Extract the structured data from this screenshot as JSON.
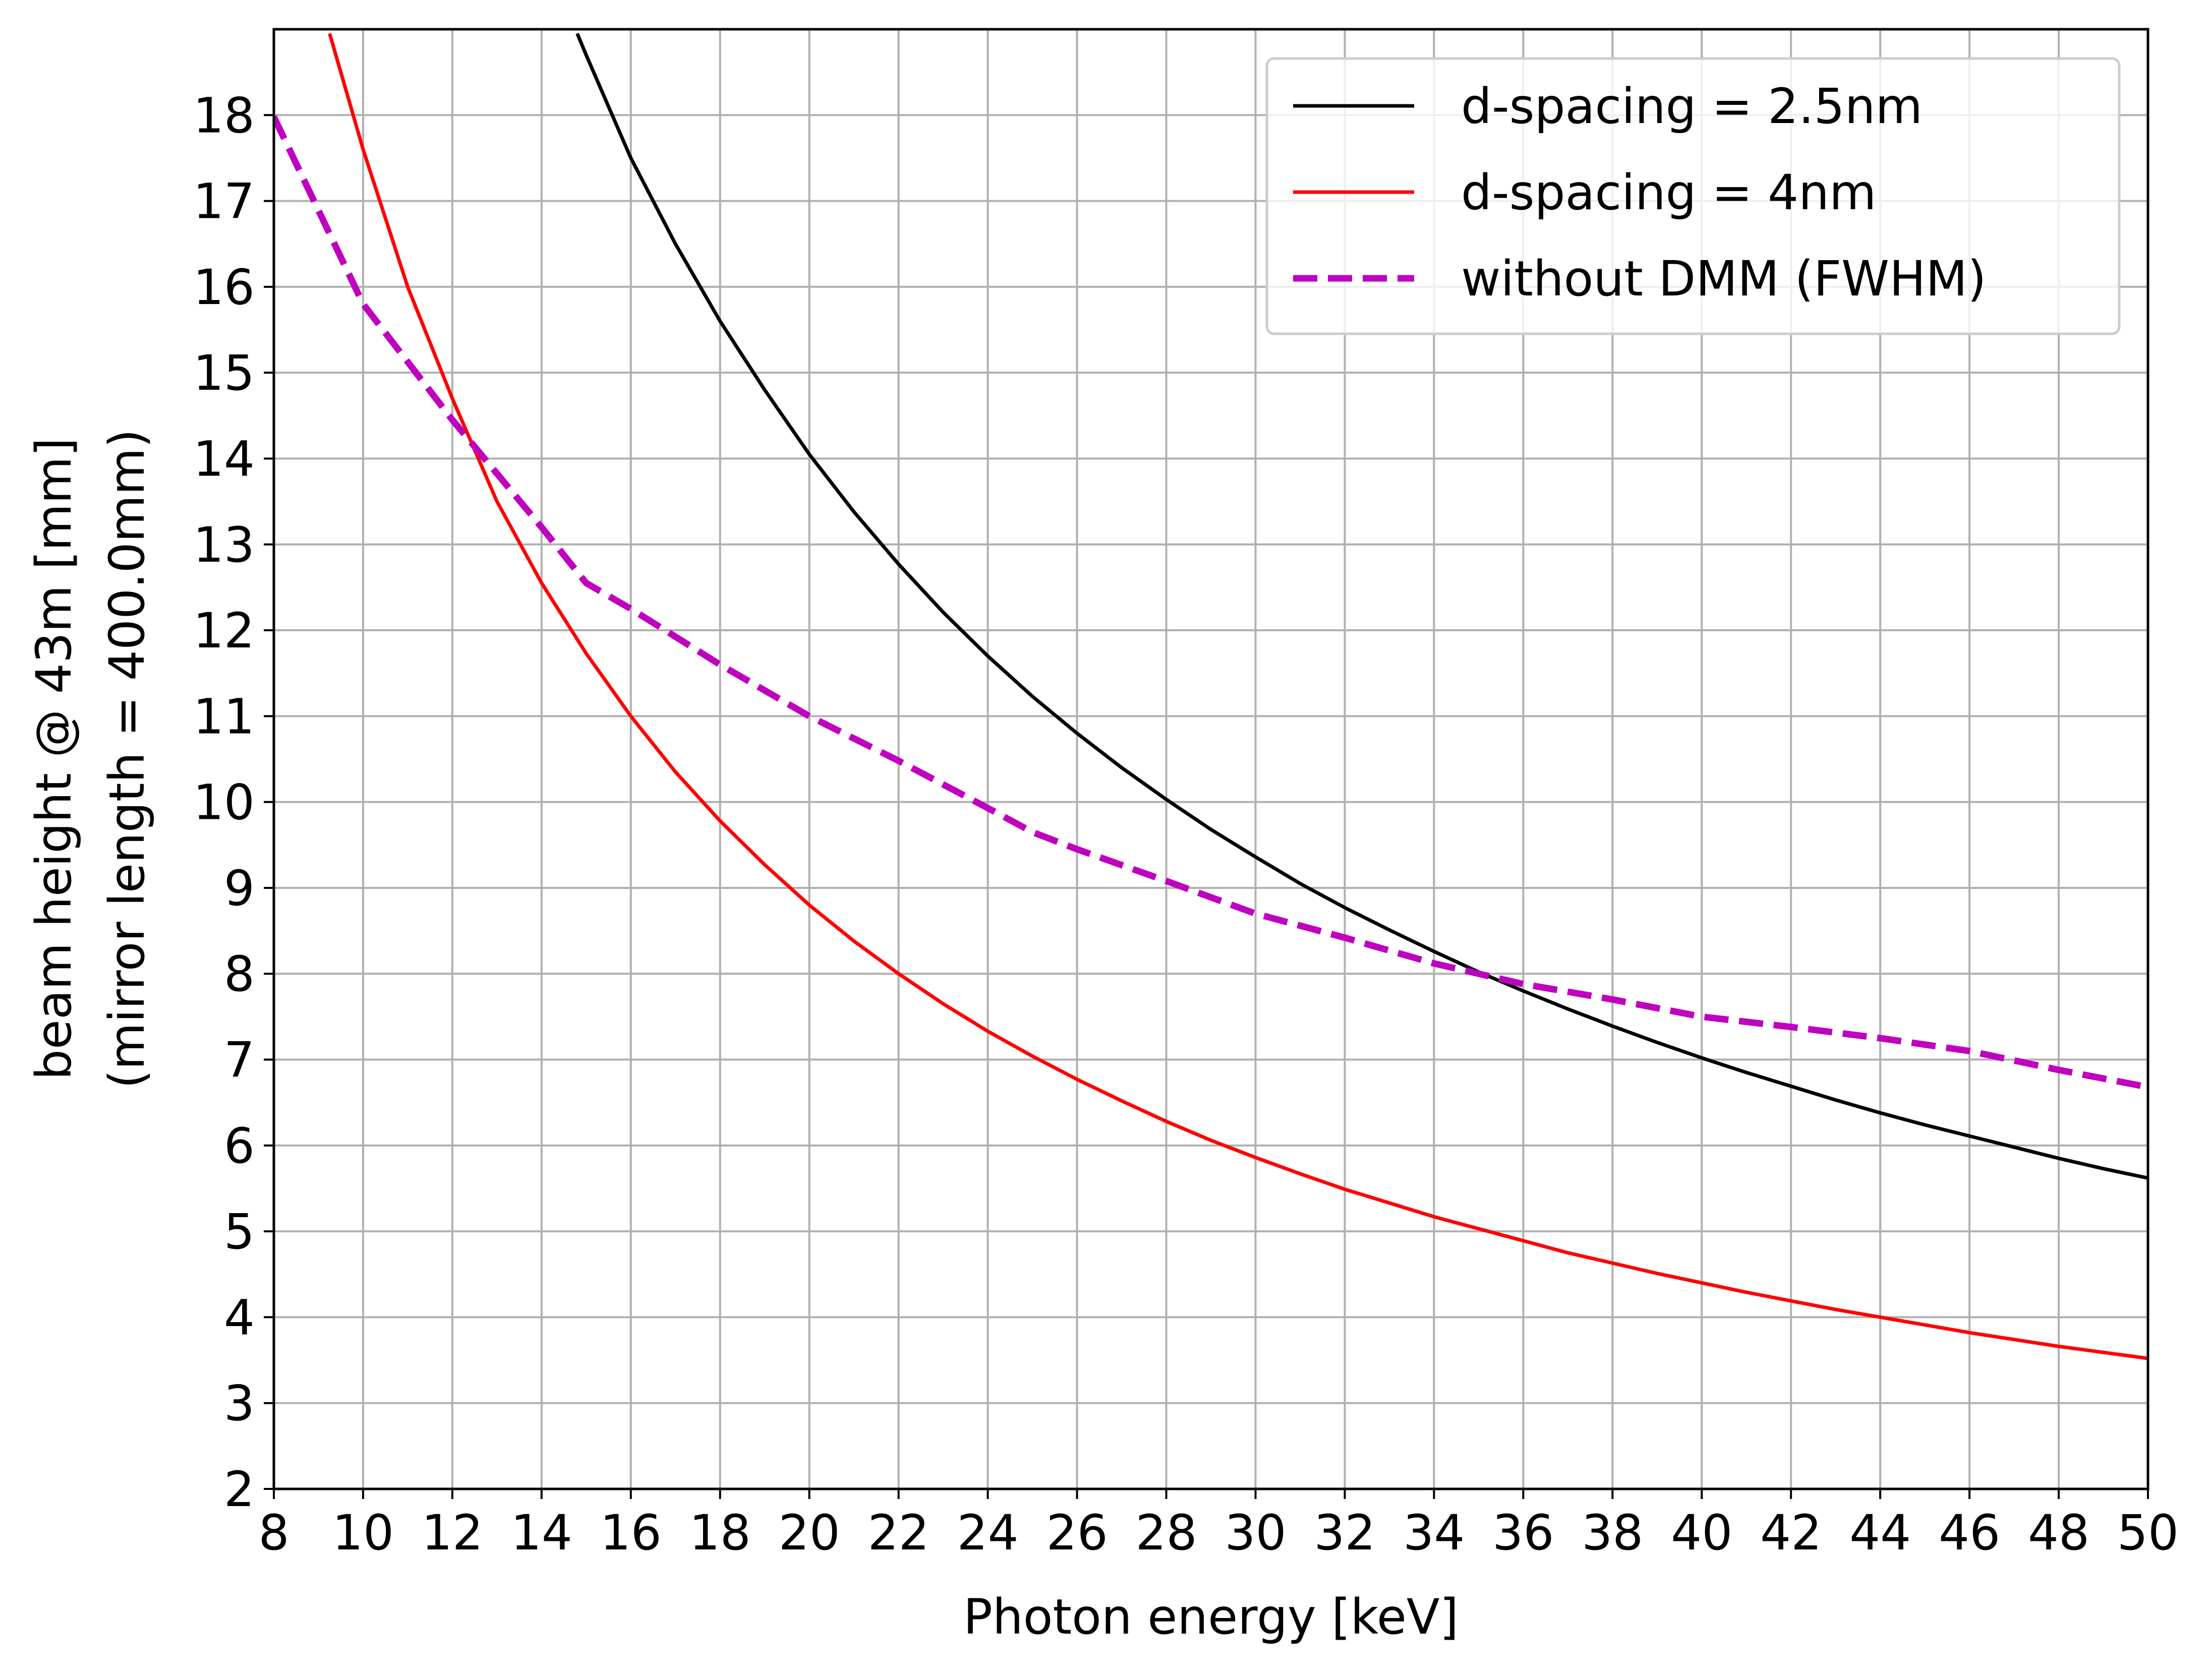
{
  "chart_data": {
    "type": "line",
    "title": "",
    "xlabel": "Photon energy [keV]",
    "ylabel": "beam height @ 43m [mm]",
    "ylabel_line2": "(mirror length = 400.0mm)",
    "xlim": [
      8,
      50
    ],
    "ylim": [
      2,
      19
    ],
    "xticks": [
      8,
      10,
      12,
      14,
      16,
      18,
      20,
      22,
      24,
      26,
      28,
      30,
      32,
      34,
      36,
      38,
      40,
      42,
      44,
      46,
      48,
      50
    ],
    "yticks": [
      2,
      3,
      4,
      5,
      6,
      7,
      8,
      9,
      10,
      11,
      12,
      13,
      14,
      15,
      16,
      17,
      18
    ],
    "grid": true,
    "legend_position": "upper right",
    "series": [
      {
        "name": "d-spacing = 2.5nm",
        "color": "#000000",
        "style": "solid",
        "x": [
          14.8,
          15,
          16,
          17,
          18,
          19,
          20,
          21,
          22,
          23,
          24,
          25,
          26,
          27,
          28,
          29,
          30,
          31,
          32,
          33,
          34,
          35,
          36,
          37,
          38,
          39,
          40,
          41,
          42,
          43,
          44,
          45,
          46,
          47,
          48,
          49,
          50
        ],
        "y": [
          18.95,
          18.7,
          17.5,
          16.5,
          15.6,
          14.8,
          14.05,
          13.38,
          12.77,
          12.21,
          11.7,
          11.23,
          10.8,
          10.4,
          10.03,
          9.68,
          9.36,
          9.05,
          8.77,
          8.51,
          8.26,
          8.02,
          7.8,
          7.59,
          7.39,
          7.2,
          7.02,
          6.85,
          6.69,
          6.53,
          6.38,
          6.24,
          6.11,
          5.98,
          5.85,
          5.73,
          5.62
        ]
      },
      {
        "name": "d-spacing = 4nm",
        "color": "#ff0000",
        "style": "solid",
        "x": [
          9.25,
          10,
          11,
          12,
          13,
          14,
          15,
          16,
          17,
          18,
          19,
          20,
          21,
          22,
          23,
          24,
          25,
          26,
          27,
          28,
          29,
          30,
          31,
          32,
          33,
          34,
          35,
          36,
          37,
          38,
          39,
          40,
          41,
          42,
          43,
          44,
          45,
          46,
          47,
          48,
          49,
          50
        ],
        "y": [
          18.95,
          17.6,
          16.0,
          14.7,
          13.5,
          12.55,
          11.73,
          11.0,
          10.35,
          9.78,
          9.27,
          8.8,
          8.38,
          8.0,
          7.65,
          7.33,
          7.04,
          6.77,
          6.52,
          6.28,
          6.06,
          5.86,
          5.67,
          5.49,
          5.33,
          5.17,
          5.03,
          4.89,
          4.75,
          4.63,
          4.51,
          4.4,
          4.29,
          4.19,
          4.09,
          4.0,
          3.91,
          3.82,
          3.74,
          3.66,
          3.59,
          3.52
        ]
      },
      {
        "name": "without DMM (FWHM)",
        "color": "#bf00bf",
        "style": "dashed",
        "x": [
          8,
          10,
          12,
          14,
          15,
          16,
          18,
          20,
          22,
          24,
          25,
          26,
          28,
          30,
          32,
          34,
          36,
          38,
          40,
          42,
          44,
          46,
          48,
          50
        ],
        "y": [
          17.98,
          15.8,
          14.45,
          13.2,
          12.55,
          12.25,
          11.6,
          11.0,
          10.48,
          9.93,
          9.65,
          9.45,
          9.08,
          8.7,
          8.42,
          8.12,
          7.88,
          7.7,
          7.5,
          7.38,
          7.25,
          7.1,
          6.88,
          6.68
        ]
      }
    ]
  }
}
